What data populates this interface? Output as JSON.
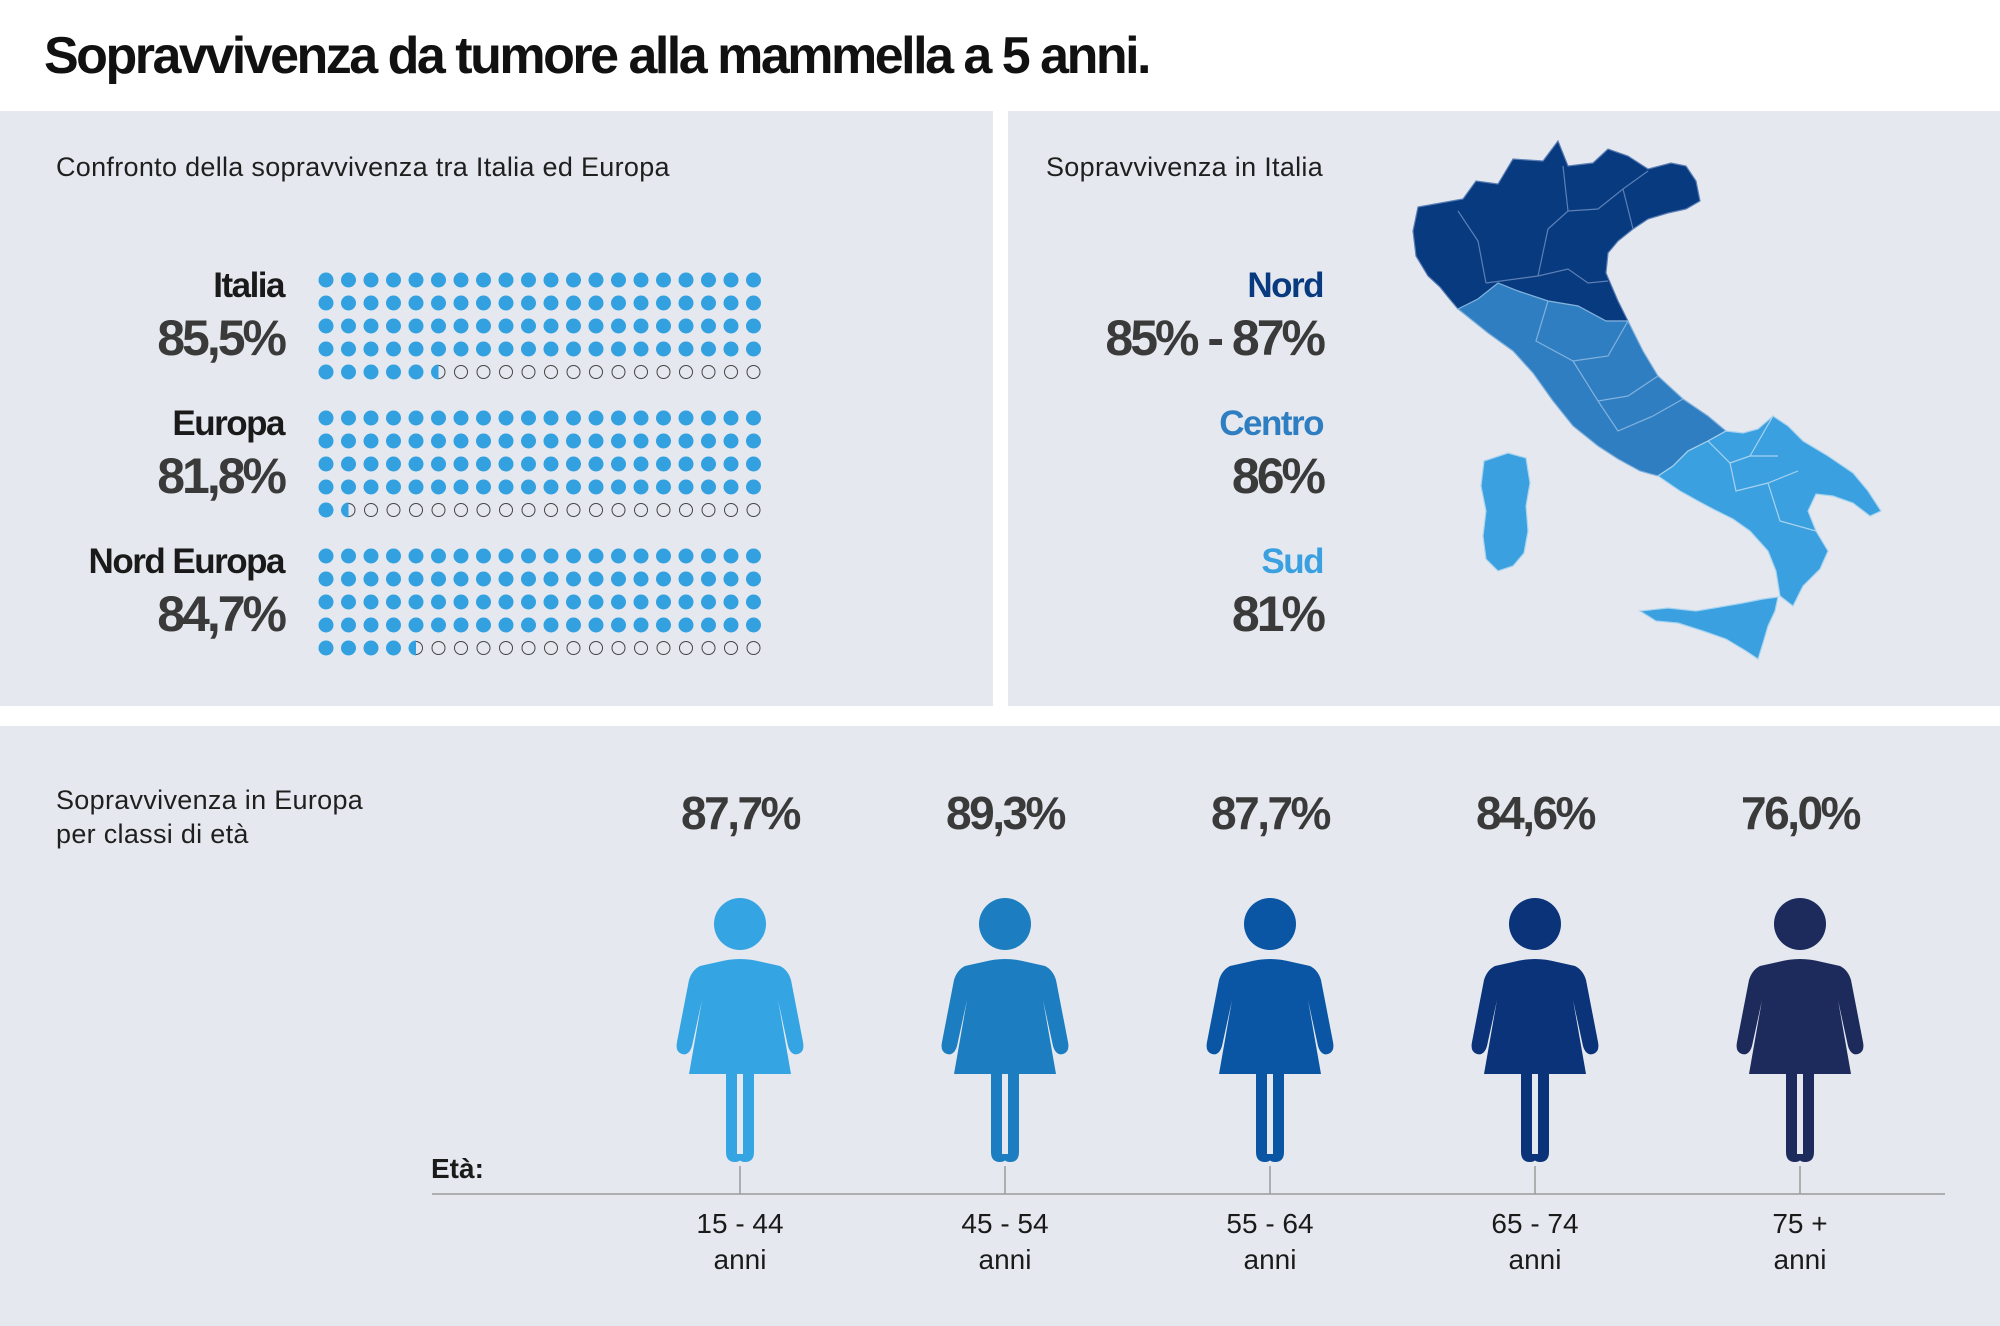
{
  "title": "Sopravvivenza da tumore alla mammella a 5 anni.",
  "compare": {
    "subtitle": "Confronto della sopravvivenza tra Italia ed Europa",
    "rows": [
      {
        "name": "Italia",
        "value_text": "85,5%",
        "value": 85.5
      },
      {
        "name": "Europa",
        "value_text": "81,8%",
        "value": 81.8
      },
      {
        "name": "Nord Europa",
        "value_text": "84,7%",
        "value": 84.7
      }
    ]
  },
  "italy": {
    "subtitle": "Sopravvivenza in Italia",
    "regions": [
      {
        "name": "Nord",
        "value_text": "85% - 87%",
        "color": "#083a7f"
      },
      {
        "name": "Centro",
        "value_text": "86%",
        "color": "#2f7ec1"
      },
      {
        "name": "Sud",
        "value_text": "81%",
        "color": "#3aa0df"
      }
    ]
  },
  "age": {
    "subtitle_line1": "Sopravvivenza in Europa",
    "subtitle_line2": "per classi di età",
    "axis_label": "Età:",
    "groups": [
      {
        "range": "15 - 44",
        "unit": "anni",
        "value_text": "87,7%",
        "value": 87.7,
        "color": "#35a4e3"
      },
      {
        "range": "45 - 54",
        "unit": "anni",
        "value_text": "89,3%",
        "value": 89.3,
        "color": "#1c7dc0"
      },
      {
        "range": "55 - 64",
        "unit": "anni",
        "value_text": "87,7%",
        "value": 87.7,
        "color": "#0a56a4"
      },
      {
        "range": "65 - 74",
        "unit": "anni",
        "value_text": "84,6%",
        "value": 84.6,
        "color": "#0a3379"
      },
      {
        "range": "75 +",
        "unit": "anni",
        "value_text": "76,0%",
        "value": 76.0,
        "color": "#1d2a5c"
      }
    ]
  },
  "chart_data": [
    {
      "type": "table",
      "title": "Confronto della sopravvivenza tra Italia ed Europa",
      "categories": [
        "Italia",
        "Europa",
        "Nord Europa"
      ],
      "values": [
        85.5,
        81.8,
        84.7
      ]
    },
    {
      "type": "table",
      "title": "Sopravvivenza in Italia",
      "categories": [
        "Nord",
        "Centro",
        "Sud"
      ],
      "values": [
        "85% - 87%",
        "86%",
        "81%"
      ]
    },
    {
      "type": "bar",
      "title": "Sopravvivenza in Europa per classi di età",
      "xlabel": "Età:",
      "categories": [
        "15 - 44 anni",
        "45 - 54 anni",
        "55 - 64 anni",
        "65 - 74 anni",
        "75 + anni"
      ],
      "values": [
        87.7,
        89.3,
        87.7,
        84.6,
        76.0
      ]
    }
  ]
}
